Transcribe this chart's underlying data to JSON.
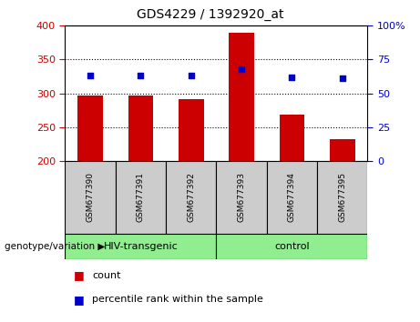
{
  "title": "GDS4229 / 1392920_at",
  "samples": [
    "GSM677390",
    "GSM677391",
    "GSM677392",
    "GSM677393",
    "GSM677394",
    "GSM677395"
  ],
  "counts": [
    297,
    297,
    292,
    390,
    268,
    232
  ],
  "percentiles": [
    63,
    63,
    63,
    68,
    62,
    61
  ],
  "ylim_left": [
    200,
    400
  ],
  "ylim_right": [
    0,
    100
  ],
  "yticks_left": [
    200,
    250,
    300,
    350,
    400
  ],
  "yticks_right": [
    0,
    25,
    50,
    75,
    100
  ],
  "bar_color": "#cc0000",
  "dot_color": "#0000cc",
  "bar_width": 0.5,
  "group_label": "genotype/variation",
  "legend_count_label": "count",
  "legend_percentile_label": "percentile rank within the sample",
  "left_color": "#cc0000",
  "right_color": "#0000cc",
  "grid_dotted_ticks": [
    250,
    300,
    350
  ],
  "sample_box_color": "#cccccc",
  "group_box_color": "#90ee90",
  "group1_label": "HIV-transgenic",
  "group2_label": "control",
  "background_color": "#ffffff"
}
